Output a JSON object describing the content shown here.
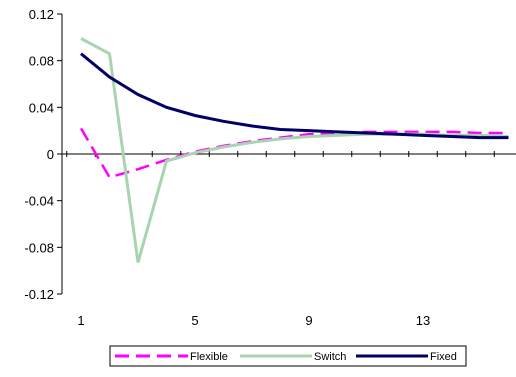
{
  "chart_data": {
    "type": "line",
    "title": "",
    "xlabel": "",
    "ylabel": "",
    "x": [
      1,
      2,
      3,
      4,
      5,
      6,
      7,
      8,
      9,
      10,
      11,
      12,
      13,
      14,
      15,
      16
    ],
    "x_ticks": [
      1,
      5,
      9,
      13
    ],
    "x_tick_labels": [
      "1",
      "5",
      "9",
      "13"
    ],
    "ylim": [
      -0.12,
      0.12
    ],
    "y_ticks": [
      -0.12,
      -0.08,
      -0.04,
      0,
      0.04,
      0.08,
      0.12
    ],
    "y_tick_labels": [
      "-0.12",
      "-0.08",
      "-0.04",
      "0",
      "0.04",
      "0.08",
      "0.12"
    ],
    "grid": false,
    "legend_position": "bottom",
    "series": [
      {
        "name": "Flexible",
        "color": "#ff00ff",
        "dash": "dashed",
        "values": [
          0.022,
          -0.02,
          -0.013,
          -0.005,
          0.002,
          0.007,
          0.011,
          0.014,
          0.017,
          0.018,
          0.019,
          0.019,
          0.019,
          0.019,
          0.018,
          0.018
        ]
      },
      {
        "name": "Switch",
        "color": "#a8d5b0",
        "dash": "solid",
        "values": [
          0.099,
          0.086,
          -0.093,
          -0.006,
          0.001,
          0.006,
          0.01,
          0.013,
          0.015,
          0.016,
          0.017,
          0.017,
          0.017,
          0.016,
          0.016,
          0.015
        ]
      },
      {
        "name": "Fixed",
        "color": "#000066",
        "dash": "solid",
        "values": [
          0.086,
          0.066,
          0.051,
          0.04,
          0.033,
          0.028,
          0.024,
          0.021,
          0.02,
          0.019,
          0.018,
          0.017,
          0.016,
          0.015,
          0.014,
          0.014
        ]
      }
    ]
  }
}
